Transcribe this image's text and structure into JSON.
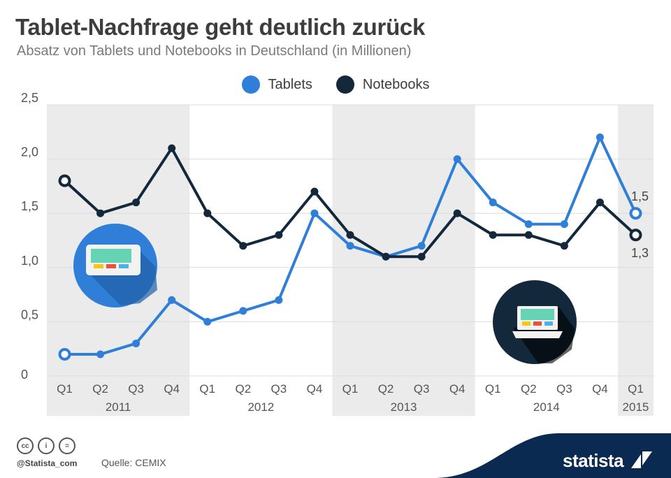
{
  "header": {
    "title": "Tablet-Nachfrage geht deutlich zurück",
    "subtitle": "Absatz von Tablets und Notebooks in Deutschland (in Millionen)"
  },
  "legend": {
    "tablets_label": "Tablets",
    "notebooks_label": "Notebooks"
  },
  "chart_data": {
    "type": "line",
    "categories": [
      "Q1",
      "Q2",
      "Q3",
      "Q4",
      "Q1",
      "Q2",
      "Q3",
      "Q4",
      "Q1",
      "Q2",
      "Q3",
      "Q4",
      "Q1",
      "Q2",
      "Q3",
      "Q4",
      "Q1"
    ],
    "years": [
      {
        "label": "2011",
        "start": 0,
        "end": 3
      },
      {
        "label": "2012",
        "start": 4,
        "end": 7
      },
      {
        "label": "2013",
        "start": 8,
        "end": 11
      },
      {
        "label": "2014",
        "start": 12,
        "end": 15
      },
      {
        "label": "2015",
        "start": 16,
        "end": 16
      }
    ],
    "yticks": [
      "0",
      "0,5",
      "1,0",
      "1,5",
      "2,0",
      "2,5"
    ],
    "ylim": [
      0,
      2.5
    ],
    "series": [
      {
        "name": "Tablets",
        "color": "#2f7ed8",
        "values": [
          0.2,
          0.2,
          0.3,
          0.7,
          0.5,
          0.6,
          0.7,
          1.5,
          1.2,
          1.1,
          1.2,
          2.0,
          1.6,
          1.4,
          1.4,
          2.2,
          1.5
        ]
      },
      {
        "name": "Notebooks",
        "color": "#13283b",
        "values": [
          1.8,
          1.5,
          1.6,
          2.1,
          1.5,
          1.2,
          1.3,
          1.7,
          1.3,
          1.1,
          1.1,
          1.5,
          1.3,
          1.3,
          1.2,
          1.6,
          1.3
        ]
      }
    ],
    "end_labels": {
      "tablets": "1,5",
      "notebooks": "1,3"
    },
    "grid": true
  },
  "footer": {
    "cc_icons": [
      "cc",
      "by",
      "nd"
    ],
    "handle": "@Statista_com",
    "source": "Quelle: CEMIX",
    "brand": "statista"
  },
  "colors": {
    "tablets": "#2f7ed8",
    "notebooks": "#13283b",
    "band": "#ebebeb",
    "grid": "#dcdcdc"
  }
}
